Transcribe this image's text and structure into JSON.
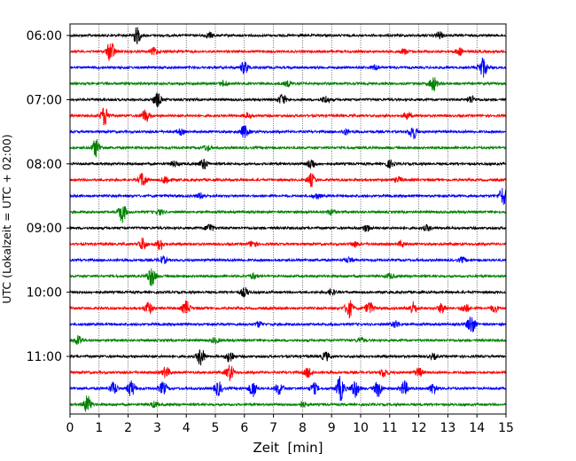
{
  "chart_data": {
    "type": "line",
    "title": "",
    "xlabel": "Zeit  [min]",
    "ylabel": "UTC (Lokalzeit = UTC + 02:00)",
    "xlim": [
      0,
      15
    ],
    "x_ticks": [
      0,
      1,
      2,
      3,
      4,
      5,
      6,
      7,
      8,
      9,
      10,
      11,
      12,
      13,
      14,
      15
    ],
    "x_tick_labels": [
      "0",
      "1",
      "2",
      "3",
      "4",
      "5",
      "6",
      "7",
      "8",
      "9",
      "10",
      "11",
      "12",
      "13",
      "14",
      "15"
    ],
    "y_tick_labels": [
      "06:00",
      "07:00",
      "08:00",
      "09:00",
      "10:00",
      "11:00"
    ],
    "vertical_grid": "dotted",
    "colors": [
      "#000000",
      "#ff0000",
      "#0000ff",
      "#008000"
    ],
    "traces": [
      {
        "start": "06:00",
        "color": "#000000",
        "events": [
          [
            2.3,
            9
          ],
          [
            12.7,
            4
          ],
          [
            4.8,
            3
          ]
        ]
      },
      {
        "start": "06:15",
        "color": "#ff0000",
        "events": [
          [
            1.4,
            12
          ],
          [
            2.9,
            4
          ],
          [
            13.4,
            4
          ],
          [
            11.5,
            3
          ]
        ]
      },
      {
        "start": "06:30",
        "color": "#0000ff",
        "events": [
          [
            6.0,
            7
          ],
          [
            14.2,
            12
          ],
          [
            10.5,
            3
          ]
        ]
      },
      {
        "start": "06:45",
        "color": "#008000",
        "events": [
          [
            12.5,
            8
          ],
          [
            5.3,
            3
          ],
          [
            7.5,
            3
          ]
        ]
      },
      {
        "start": "07:00",
        "color": "#000000",
        "events": [
          [
            3.0,
            8
          ],
          [
            7.3,
            6
          ],
          [
            8.8,
            4
          ],
          [
            13.8,
            4
          ]
        ]
      },
      {
        "start": "07:15",
        "color": "#ff0000",
        "events": [
          [
            1.2,
            11
          ],
          [
            2.6,
            7
          ],
          [
            11.6,
            4
          ],
          [
            6.1,
            3
          ]
        ]
      },
      {
        "start": "07:30",
        "color": "#0000ff",
        "events": [
          [
            6.0,
            7
          ],
          [
            11.8,
            8
          ],
          [
            3.8,
            3
          ],
          [
            9.5,
            3
          ]
        ]
      },
      {
        "start": "07:45",
        "color": "#008000",
        "events": [
          [
            0.9,
            10
          ],
          [
            4.7,
            3
          ]
        ]
      },
      {
        "start": "08:00",
        "color": "#000000",
        "events": [
          [
            4.6,
            6
          ],
          [
            8.3,
            6
          ],
          [
            11.0,
            4
          ],
          [
            3.6,
            3
          ]
        ]
      },
      {
        "start": "08:15",
        "color": "#ff0000",
        "events": [
          [
            2.5,
            8
          ],
          [
            3.3,
            5
          ],
          [
            8.3,
            7
          ],
          [
            11.3,
            3
          ]
        ]
      },
      {
        "start": "08:30",
        "color": "#0000ff",
        "events": [
          [
            14.9,
            10
          ],
          [
            4.5,
            3
          ],
          [
            8.5,
            3
          ]
        ]
      },
      {
        "start": "08:45",
        "color": "#008000",
        "events": [
          [
            1.8,
            11
          ],
          [
            3.1,
            3
          ],
          [
            9.0,
            3
          ]
        ]
      },
      {
        "start": "09:00",
        "color": "#000000",
        "events": [
          [
            4.8,
            5
          ],
          [
            10.2,
            4
          ],
          [
            12.3,
            3
          ]
        ]
      },
      {
        "start": "09:15",
        "color": "#ff0000",
        "events": [
          [
            2.5,
            7
          ],
          [
            3.1,
            6
          ],
          [
            6.3,
            4
          ],
          [
            9.8,
            3
          ],
          [
            11.4,
            3
          ]
        ]
      },
      {
        "start": "09:30",
        "color": "#0000ff",
        "events": [
          [
            3.2,
            4
          ],
          [
            9.6,
            3
          ],
          [
            13.5,
            3
          ]
        ]
      },
      {
        "start": "09:45",
        "color": "#008000",
        "events": [
          [
            2.8,
            11
          ],
          [
            6.3,
            3
          ],
          [
            11.0,
            3
          ]
        ]
      },
      {
        "start": "10:00",
        "color": "#000000",
        "events": [
          [
            6.0,
            5
          ],
          [
            9.0,
            3
          ]
        ]
      },
      {
        "start": "10:15",
        "color": "#ff0000",
        "events": [
          [
            2.7,
            7
          ],
          [
            4.0,
            8
          ],
          [
            9.6,
            10
          ],
          [
            10.3,
            7
          ],
          [
            11.8,
            7
          ],
          [
            12.8,
            6
          ],
          [
            13.6,
            5
          ],
          [
            14.6,
            4
          ]
        ]
      },
      {
        "start": "10:30",
        "color": "#0000ff",
        "events": [
          [
            13.8,
            11
          ],
          [
            6.5,
            3
          ],
          [
            11.2,
            4
          ]
        ]
      },
      {
        "start": "10:45",
        "color": "#008000",
        "events": [
          [
            0.3,
            6
          ],
          [
            5.0,
            3
          ],
          [
            10.0,
            3
          ]
        ]
      },
      {
        "start": "11:00",
        "color": "#000000",
        "events": [
          [
            4.5,
            10
          ],
          [
            5.5,
            7
          ],
          [
            8.8,
            5
          ],
          [
            12.5,
            3
          ]
        ]
      },
      {
        "start": "11:15",
        "color": "#ff0000",
        "events": [
          [
            3.3,
            6
          ],
          [
            5.5,
            9
          ],
          [
            8.2,
            6
          ],
          [
            10.8,
            5
          ],
          [
            12.0,
            5
          ]
        ]
      },
      {
        "start": "11:30",
        "color": "#0000ff",
        "events": [
          [
            1.5,
            7
          ],
          [
            2.1,
            9
          ],
          [
            3.2,
            7
          ],
          [
            5.1,
            8
          ],
          [
            6.3,
            9
          ],
          [
            7.2,
            7
          ],
          [
            8.4,
            6
          ],
          [
            9.3,
            14
          ],
          [
            9.8,
            10
          ],
          [
            10.6,
            9
          ],
          [
            11.5,
            8
          ],
          [
            12.5,
            6
          ]
        ]
      },
      {
        "start": "11:45",
        "color": "#008000",
        "events": [
          [
            0.6,
            10
          ],
          [
            2.9,
            3
          ],
          [
            8.0,
            3
          ]
        ]
      }
    ]
  }
}
